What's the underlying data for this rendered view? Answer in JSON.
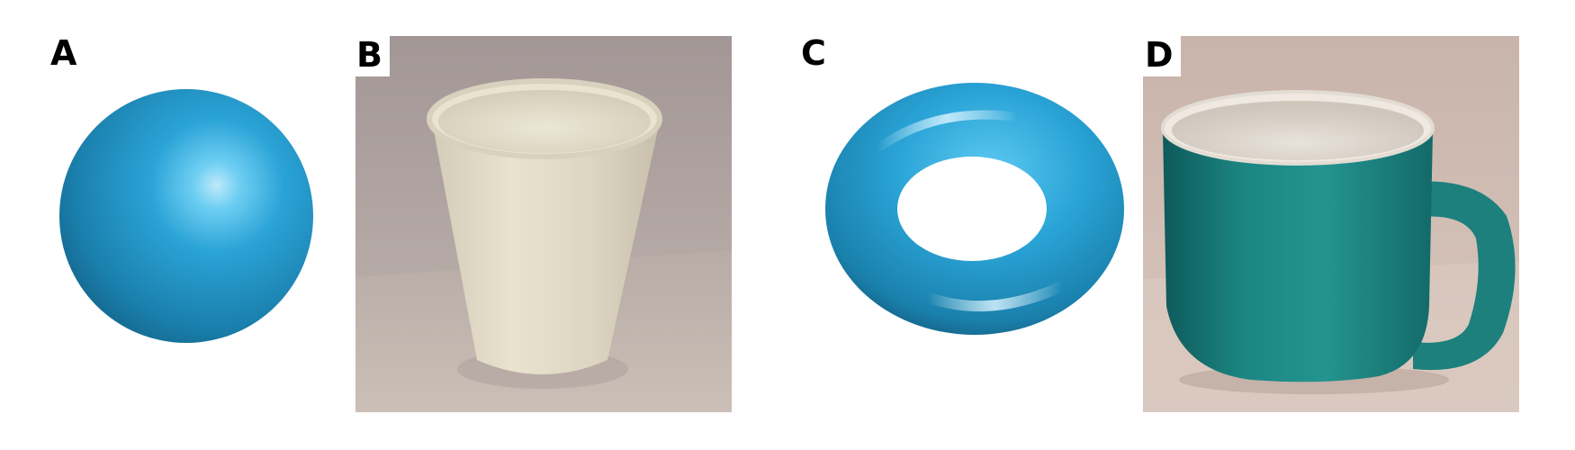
{
  "panels": [
    {
      "id": "A",
      "label": "A",
      "subject": "sphere",
      "kind": "rendered-shape",
      "color": "#2aa3d6"
    },
    {
      "id": "B",
      "label": "B",
      "subject": "paper cup",
      "kind": "photograph",
      "color": "#e6dfcc"
    },
    {
      "id": "C",
      "label": "C",
      "subject": "torus",
      "kind": "rendered-shape",
      "color": "#2aa3d6"
    },
    {
      "id": "D",
      "label": "D",
      "subject": "mug",
      "kind": "photograph",
      "color": "#1f8a86"
    }
  ]
}
